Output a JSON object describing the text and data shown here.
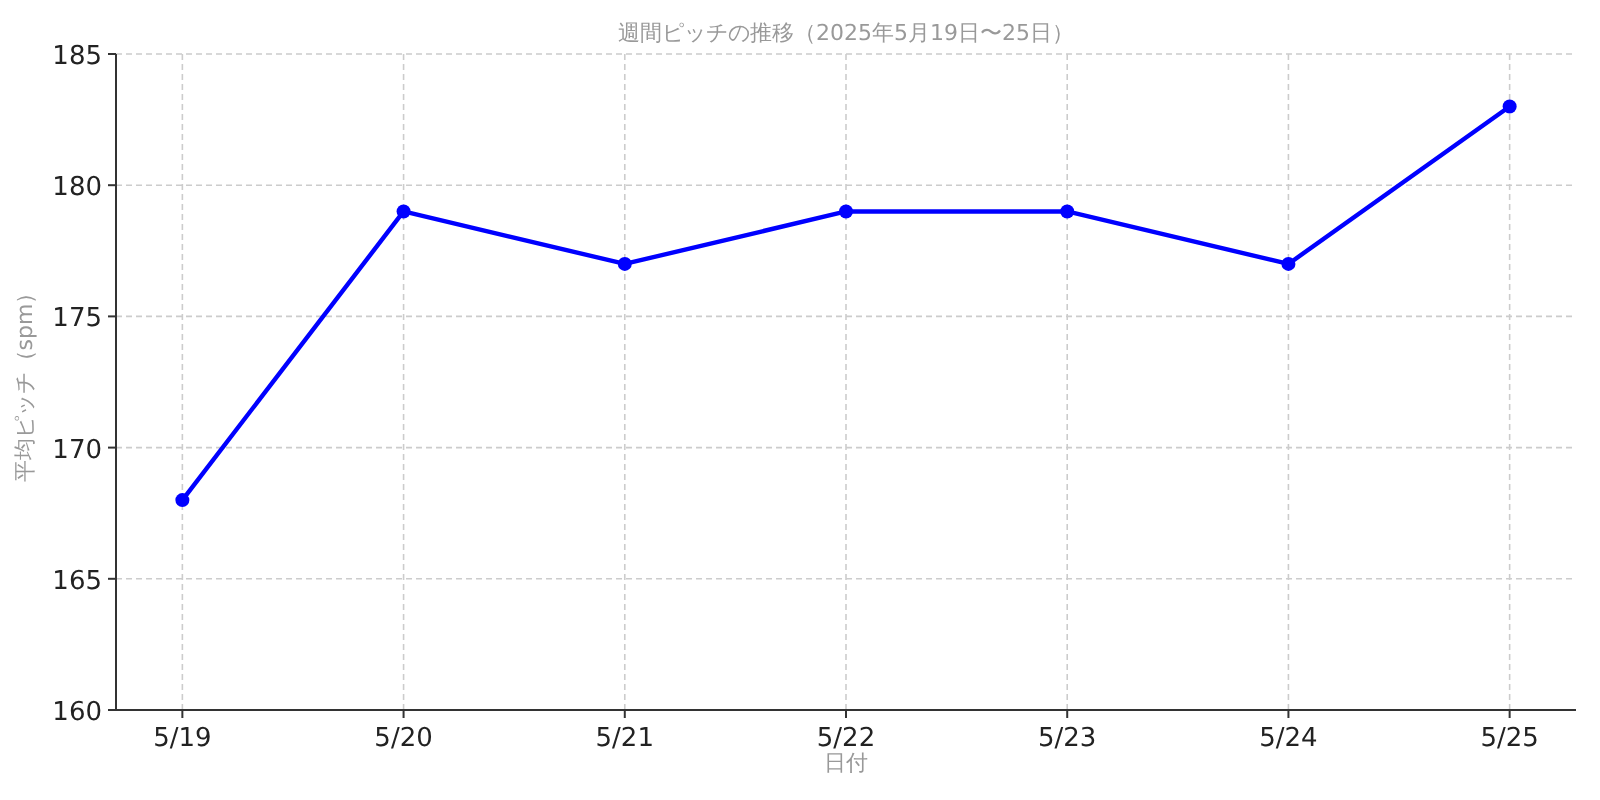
{
  "chart_data": {
    "type": "line",
    "title": "週間ピッチの推移（2025年5月19日〜25日）",
    "xlabel": "日付",
    "ylabel": "平均ピッチ（spm）",
    "categories": [
      "5/19",
      "5/20",
      "5/21",
      "5/22",
      "5/23",
      "5/24",
      "5/25"
    ],
    "series": [
      {
        "color": "#0000ff",
        "values": [
          168,
          179,
          177,
          179,
          179,
          177,
          183
        ]
      }
    ],
    "ylim": [
      160,
      185
    ],
    "yticks": [
      160,
      165,
      170,
      175,
      180,
      185
    ],
    "grid": true,
    "marker": "circle",
    "line_style": "solid"
  }
}
